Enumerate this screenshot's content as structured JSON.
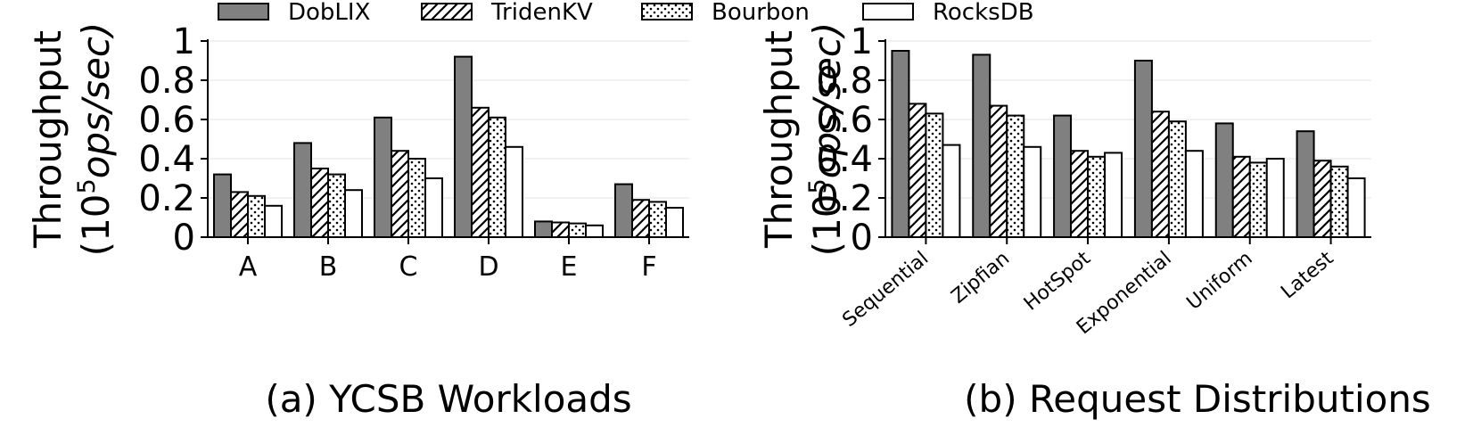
{
  "legend": {
    "placement": "top",
    "entries": [
      {
        "name": "DobLIX",
        "fill": "#808080",
        "pattern": "solid"
      },
      {
        "name": "TridenKV",
        "fill": "#ffffff",
        "pattern": "diagonal-hatch"
      },
      {
        "name": "Bourbon",
        "fill": "#ffffff",
        "pattern": "dots"
      },
      {
        "name": "RocksDB",
        "fill": "#ffffff",
        "pattern": "none"
      }
    ]
  },
  "chart_data": [
    {
      "type": "bar",
      "title": "(a) YCSB Workloads",
      "ylabel_line1": "Throughput",
      "ylabel_line2_prefix": "(10",
      "ylabel_line2_sup": "5",
      "ylabel_line2_suffix": "ops/sec)",
      "ylim": [
        0,
        1
      ],
      "yticks": [
        "0",
        "0.2",
        "0.4",
        "0.6",
        "0.8",
        "1"
      ],
      "grid": "y",
      "categories": [
        "A",
        "B",
        "C",
        "D",
        "E",
        "F"
      ],
      "series": [
        {
          "name": "DobLIX",
          "values": [
            0.32,
            0.48,
            0.61,
            0.92,
            0.08,
            0.27
          ]
        },
        {
          "name": "TridenKV",
          "values": [
            0.23,
            0.35,
            0.44,
            0.66,
            0.075,
            0.19
          ]
        },
        {
          "name": "Bourbon",
          "values": [
            0.21,
            0.32,
            0.4,
            0.61,
            0.07,
            0.18
          ]
        },
        {
          "name": "RocksDB",
          "values": [
            0.16,
            0.24,
            0.3,
            0.46,
            0.06,
            0.15
          ]
        }
      ]
    },
    {
      "type": "bar",
      "title": "(b) Request Distributions",
      "ylabel_line1": "Throughput",
      "ylabel_line2_prefix": "(10",
      "ylabel_line2_sup": "5",
      "ylabel_line2_suffix": "ops/sec)",
      "ylim": [
        0,
        1
      ],
      "yticks": [
        "0",
        "0.2",
        "0.4",
        "0.6",
        "0.8",
        "1"
      ],
      "grid": "y",
      "categories": [
        "Sequential",
        "Zipfian",
        "HotSpot",
        "Exponential",
        "Uniform",
        "Latest"
      ],
      "series": [
        {
          "name": "DobLIX",
          "values": [
            0.95,
            0.93,
            0.62,
            0.9,
            0.58,
            0.54
          ]
        },
        {
          "name": "TridenKV",
          "values": [
            0.68,
            0.67,
            0.44,
            0.64,
            0.41,
            0.39
          ]
        },
        {
          "name": "Bourbon",
          "values": [
            0.63,
            0.62,
            0.41,
            0.59,
            0.38,
            0.36
          ]
        },
        {
          "name": "RocksDB",
          "values": [
            0.47,
            0.46,
            0.43,
            0.44,
            0.4,
            0.3
          ]
        }
      ]
    }
  ]
}
